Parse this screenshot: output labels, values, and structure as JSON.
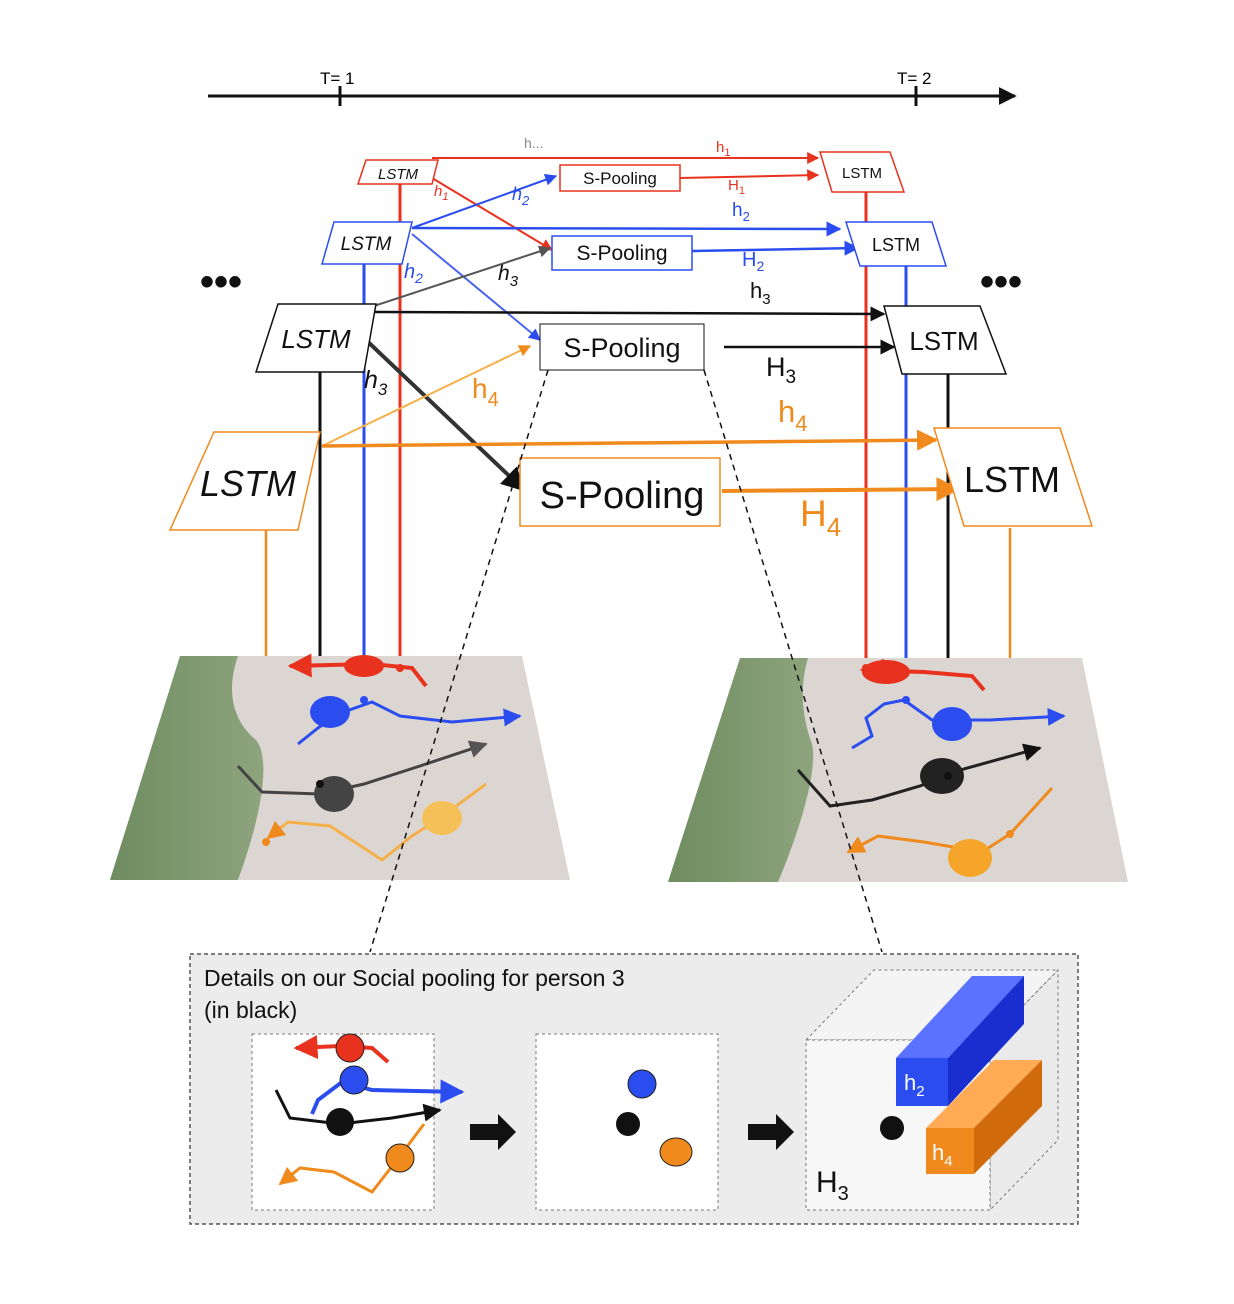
{
  "timeline": {
    "t1": "T= 1",
    "t2": "T= 2"
  },
  "ellipsis": "•••",
  "boxes": {
    "lstm": "LSTM",
    "spool": "S-Pooling"
  },
  "labels": {
    "h_dots": "h...",
    "h1": "h",
    "h1_sub": "1",
    "h2": "h",
    "h2_sub": "2",
    "h3": "h",
    "h3_sub": "3",
    "h4": "h",
    "h4_sub": "4",
    "H1": "H",
    "H1_sub": "1",
    "H2": "H",
    "H2_sub": "2",
    "H3": "H",
    "H3_sub": "3",
    "H4": "H",
    "H4_sub": "4"
  },
  "details": {
    "title_line1": "Details on our Social pooling for person 3",
    "title_line2": "(in black)",
    "h2": "h",
    "h2_sub": "2",
    "h4": "h",
    "h4_sub": "4",
    "H3": "H",
    "H3_sub": "3"
  },
  "colors": {
    "red": "#e8321e",
    "blue": "#2b4df0",
    "black": "#111111",
    "orange": "#f08a1c",
    "grass": "#7f9a6e",
    "pavement": "#dcd6d3"
  }
}
